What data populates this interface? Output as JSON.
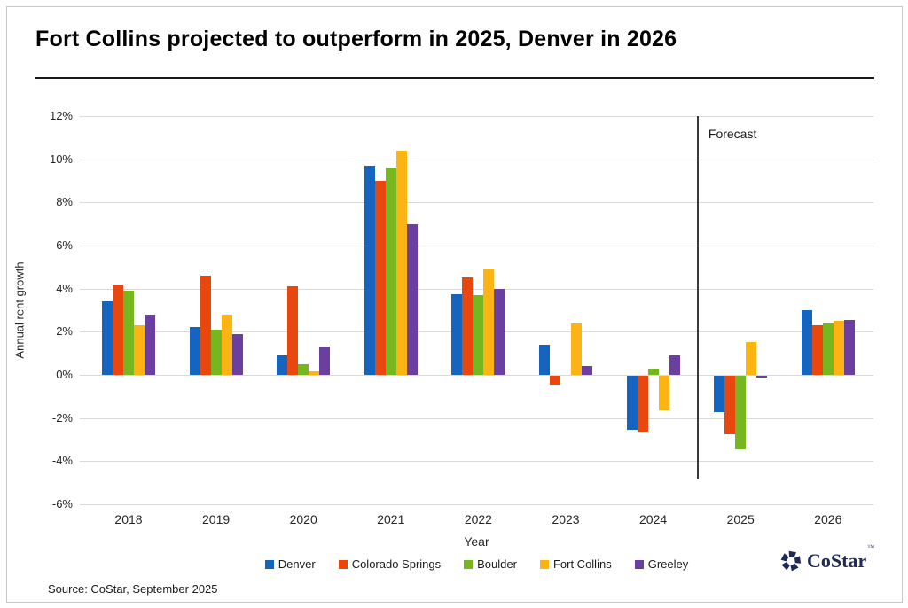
{
  "header": {
    "title": "Fort Collins projected to outperform in 2025, Denver in 2026"
  },
  "chart_data": {
    "type": "bar",
    "title": "Fort Collins projected to outperform in 2025, Denver in 2026",
    "xlabel": "Year",
    "ylabel": "Annual rent growth",
    "ylim": [
      -6,
      12
    ],
    "ytick_step": 2,
    "ytick_suffix": "%",
    "grid": true,
    "legend_position": "bottom",
    "categories": [
      "2018",
      "2019",
      "2020",
      "2021",
      "2022",
      "2023",
      "2024",
      "2025",
      "2026"
    ],
    "series": [
      {
        "name": "Denver",
        "color": "#1565c0",
        "values": [
          3.4,
          2.2,
          0.9,
          9.7,
          3.75,
          1.4,
          -2.5,
          -1.7,
          3.0
        ]
      },
      {
        "name": "Colorado Springs",
        "color": "#e8470e",
        "values": [
          4.2,
          4.6,
          4.1,
          9.0,
          4.5,
          -0.4,
          -2.6,
          -2.7,
          2.3
        ]
      },
      {
        "name": "Boulder",
        "color": "#76b71f",
        "values": [
          3.9,
          2.1,
          0.5,
          9.6,
          3.7,
          0.0,
          0.3,
          -3.4,
          2.4
        ]
      },
      {
        "name": "Fort Collins",
        "color": "#fcb414",
        "values": [
          2.3,
          2.8,
          0.15,
          10.4,
          4.9,
          2.4,
          -1.6,
          1.5,
          2.5
        ]
      },
      {
        "name": "Greeley",
        "color": "#6b3fa0",
        "values": [
          2.8,
          1.9,
          1.3,
          7.0,
          4.0,
          0.4,
          0.9,
          -0.1,
          2.55
        ]
      }
    ],
    "annotations": [
      {
        "text": "Forecast",
        "after_category": "2024"
      }
    ]
  },
  "footer": {
    "source": "Source: CoStar, September 2025"
  },
  "logo": {
    "text": "CoStar",
    "tm": "™",
    "color": "#1f2a56"
  }
}
